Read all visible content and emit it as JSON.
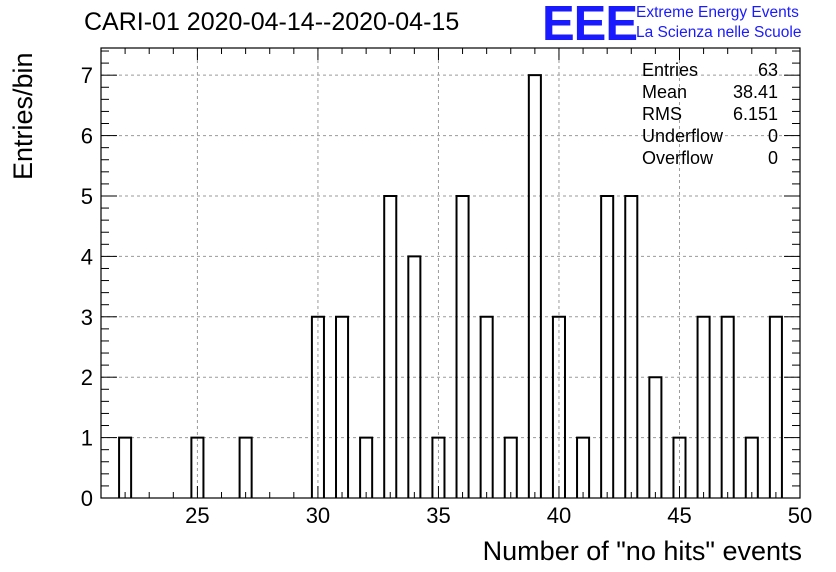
{
  "title": "CARI-01 2020-04-14--2020-04-15",
  "logo": {
    "mark": "EEE",
    "line1": "Extreme Energy Events",
    "line2": "La Scienza nelle Scuole"
  },
  "stats": [
    {
      "label": "Entries",
      "value": "63"
    },
    {
      "label": "Mean",
      "value": "38.41"
    },
    {
      "label": "RMS",
      "value": "6.151"
    },
    {
      "label": "Underflow",
      "value": "0"
    },
    {
      "label": "Overflow",
      "value": "0"
    }
  ],
  "chart_data": {
    "type": "bar",
    "title": "CARI-01 2020-04-14--2020-04-15",
    "xlabel": "Number of \"no hits\" events",
    "ylabel": "Entries/bin",
    "xlim": [
      21,
      50
    ],
    "ylim": [
      0,
      7.45
    ],
    "xticks": [
      25,
      30,
      35,
      40,
      45,
      50
    ],
    "yticks": [
      0,
      1,
      2,
      3,
      4,
      5,
      6,
      7
    ],
    "grid": true,
    "bins": [
      {
        "x": 22,
        "value": 1
      },
      {
        "x": 25,
        "value": 1
      },
      {
        "x": 27,
        "value": 1
      },
      {
        "x": 30,
        "value": 3
      },
      {
        "x": 31,
        "value": 3
      },
      {
        "x": 32,
        "value": 1
      },
      {
        "x": 33,
        "value": 5
      },
      {
        "x": 34,
        "value": 4
      },
      {
        "x": 35,
        "value": 1
      },
      {
        "x": 36,
        "value": 5
      },
      {
        "x": 37,
        "value": 3
      },
      {
        "x": 38,
        "value": 1
      },
      {
        "x": 39,
        "value": 7
      },
      {
        "x": 40,
        "value": 3
      },
      {
        "x": 41,
        "value": 1
      },
      {
        "x": 42,
        "value": 5
      },
      {
        "x": 43,
        "value": 5
      },
      {
        "x": 44,
        "value": 2
      },
      {
        "x": 45,
        "value": 1
      },
      {
        "x": 46,
        "value": 3
      },
      {
        "x": 47,
        "value": 3
      },
      {
        "x": 48,
        "value": 1
      },
      {
        "x": 49,
        "value": 3
      }
    ],
    "colors": {
      "axis": "#000000",
      "grid": "#9a9a9a",
      "bar": "#000000",
      "logo": "#1a1aff"
    }
  }
}
